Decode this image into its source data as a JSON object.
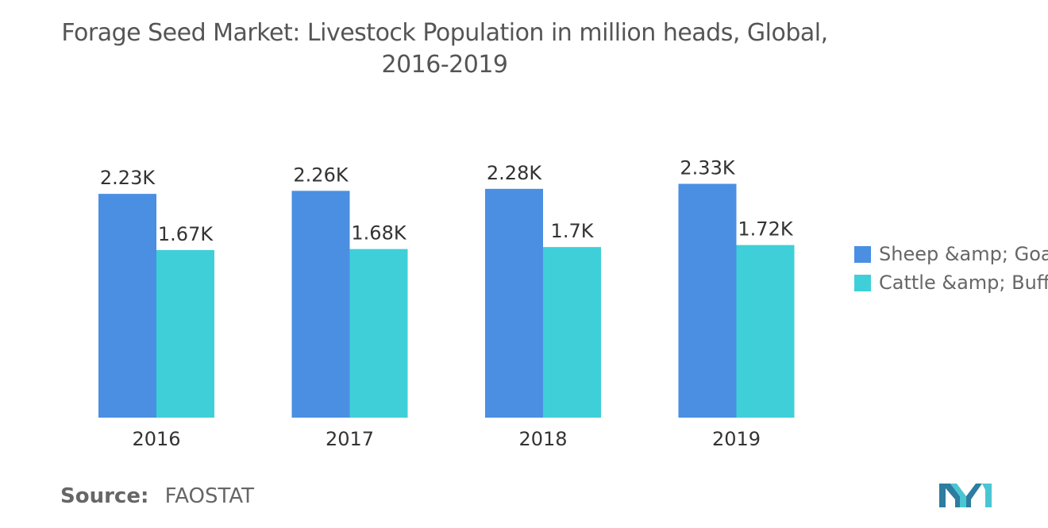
{
  "title_line1": "Forage Seed Market: Livestock Population in million heads, Global,",
  "title_line2": "2016-2019",
  "source": {
    "label": "Source:",
    "value": "FAOSTAT"
  },
  "colors": {
    "series1": "#4A8FE2",
    "series2": "#3FCFD8",
    "axis": "#cccccc"
  },
  "chart_data": {
    "type": "bar",
    "title": "Forage Seed Market: Livestock Population in million heads, Global, 2016-2019",
    "categories": [
      "2016",
      "2017",
      "2018",
      "2019"
    ],
    "series": [
      {
        "name": "Sheep &amp; Goats",
        "values": [
          2230,
          2260,
          2280,
          2330
        ],
        "labels": [
          "2.23K",
          "2.26K",
          "2.28K",
          "2.33K"
        ]
      },
      {
        "name": "Cattle &amp; Buffaloes",
        "values": [
          1670,
          1680,
          1700,
          1720
        ],
        "labels": [
          "1.67K",
          "1.68K",
          "1.7K",
          "1.72K"
        ]
      }
    ],
    "ylim": [
      0,
      2600
    ],
    "grid": false,
    "legend_position": "right"
  }
}
